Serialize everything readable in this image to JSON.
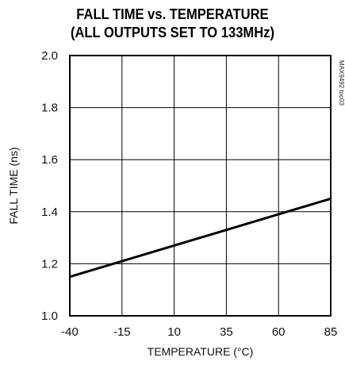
{
  "chart_data": {
    "type": "line",
    "title_line1": "FALL TIME vs. TEMPERATURE",
    "title_line2": "(ALL OUTPUTS SET TO 133MHz)",
    "xlabel": "TEMPERATURE (°C)",
    "ylabel": "FALL TIME (ns)",
    "figure_id": "MAX9492 toc03",
    "xlim": [
      -40,
      85
    ],
    "ylim": [
      1.0,
      2.0
    ],
    "xticks": [
      "-40",
      "-15",
      "10",
      "35",
      "60",
      "85"
    ],
    "yticks": [
      "1.0",
      "1.2",
      "1.4",
      "1.6",
      "1.8",
      "2.0"
    ],
    "grid": true,
    "x": [
      -40,
      85
    ],
    "y": [
      1.15,
      1.45
    ]
  }
}
